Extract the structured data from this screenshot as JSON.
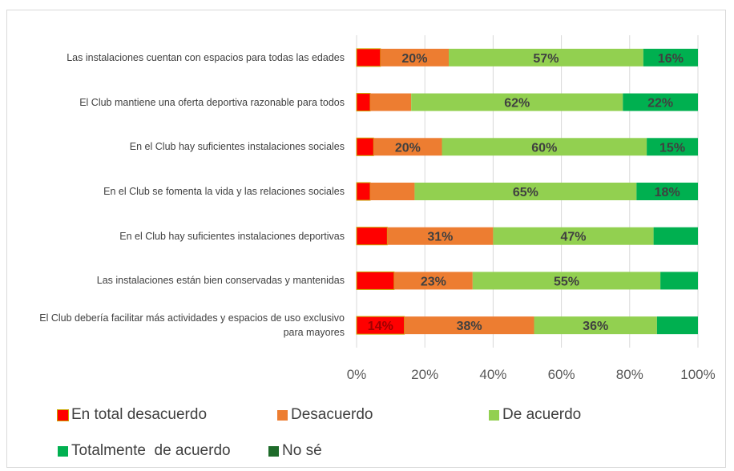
{
  "chart_data": {
    "type": "stacked_bar_horizontal",
    "categories": [
      "Las instalaciones cuentan con espacios para todas las edades",
      "El Club mantiene una oferta deportiva razonable para todos",
      "En el Club hay suficientes instalaciones sociales",
      "En el Club se fomenta la vida y las relaciones sociales",
      "En el Club hay suficientes instalaciones deportivas",
      "Las instalaciones están bien conservadas y mantenidas",
      "El Club debería facilitar más actividades y espacios de uso exclusivo para mayores"
    ],
    "series": [
      {
        "name": "En total desacuerdo",
        "color": "#ff0000",
        "values": [
          7,
          4,
          5,
          4,
          9,
          11,
          14
        ],
        "value_labels": [
          null,
          null,
          null,
          null,
          null,
          null,
          "14%"
        ]
      },
      {
        "name": "Desacuerdo",
        "color": "#ed7d31",
        "values": [
          20,
          12,
          20,
          13,
          31,
          23,
          38
        ],
        "value_labels": [
          "20%",
          null,
          "20%",
          null,
          "31%",
          "23%",
          "38%"
        ]
      },
      {
        "name": "De acuerdo",
        "color": "#92d050",
        "values": [
          57,
          62,
          60,
          65,
          47,
          55,
          36
        ],
        "value_labels": [
          "57%",
          "62%",
          "60%",
          "65%",
          "47%",
          "55%",
          "36%"
        ]
      },
      {
        "name": "Totalmente  de acuerdo",
        "color": "#00b050",
        "values": [
          16,
          22,
          15,
          18,
          13,
          11,
          12
        ],
        "value_labels": [
          "16%",
          "22%",
          "15%",
          "18%",
          null,
          null,
          null
        ]
      },
      {
        "name": "No sé",
        "color": "#1e6b2a",
        "values": [
          0,
          0,
          0,
          0,
          0,
          0,
          0
        ],
        "value_labels": [
          null,
          null,
          null,
          null,
          null,
          null,
          null
        ]
      }
    ],
    "xlim": [
      0,
      100
    ],
    "xticks": [
      {
        "value": 0,
        "label": "0%"
      },
      {
        "value": 20,
        "label": "20%"
      },
      {
        "value": 40,
        "label": "40%"
      },
      {
        "value": 60,
        "label": "60%"
      },
      {
        "value": 80,
        "label": "80%"
      },
      {
        "value": 100,
        "label": "100%"
      }
    ],
    "grid": true,
    "legend": "bottom"
  }
}
